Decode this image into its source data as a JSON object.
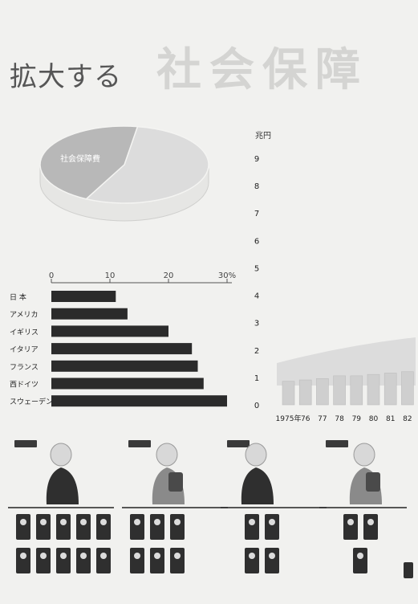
{
  "page": {
    "title_small": "拡大する",
    "title_big": "社会保障"
  },
  "colors": {
    "bar_dark": "#2b2b2b",
    "pie_light": "#dcdcdc",
    "pie_mid": "#b8b8b8",
    "bar_light": "#cfcfcf",
    "figure_dark": "#2f2f2f",
    "figure_skin": "#d8d8d8"
  },
  "chart_data": [
    {
      "type": "pie",
      "labels": [
        "",
        "社会保障費"
      ],
      "values": [
        55,
        45
      ],
      "style": "3d-oval"
    },
    {
      "type": "bar",
      "orientation": "horizontal",
      "categories": [
        "日 本",
        "アメリカ",
        "イギリス",
        "イタリア",
        "フランス",
        "西ドイツ",
        "スウェーデン"
      ],
      "values": [
        11,
        13,
        20,
        24,
        25,
        26,
        30
      ],
      "xticks": [
        "0",
        "10",
        "20",
        "30%"
      ],
      "xlim": [
        0,
        30
      ]
    },
    {
      "type": "bar",
      "orientation": "vertical",
      "categories": [
        "1975年",
        "76",
        "77",
        "78",
        "79",
        "80",
        "81",
        "82"
      ],
      "values": [
        0.8,
        0.85,
        0.9,
        1.0,
        1.0,
        1.05,
        1.1,
        1.15
      ],
      "ylabel": "兆円",
      "yticks": [
        "0",
        "1",
        "2",
        "3",
        "4",
        "5",
        "6",
        "7",
        "8",
        "9"
      ],
      "ylim": [
        0,
        9
      ]
    }
  ],
  "pictogram": {
    "groups": [
      {
        "workers": 10
      },
      {
        "workers": 6
      },
      {
        "workers": 4
      },
      {
        "workers": 3
      }
    ]
  }
}
